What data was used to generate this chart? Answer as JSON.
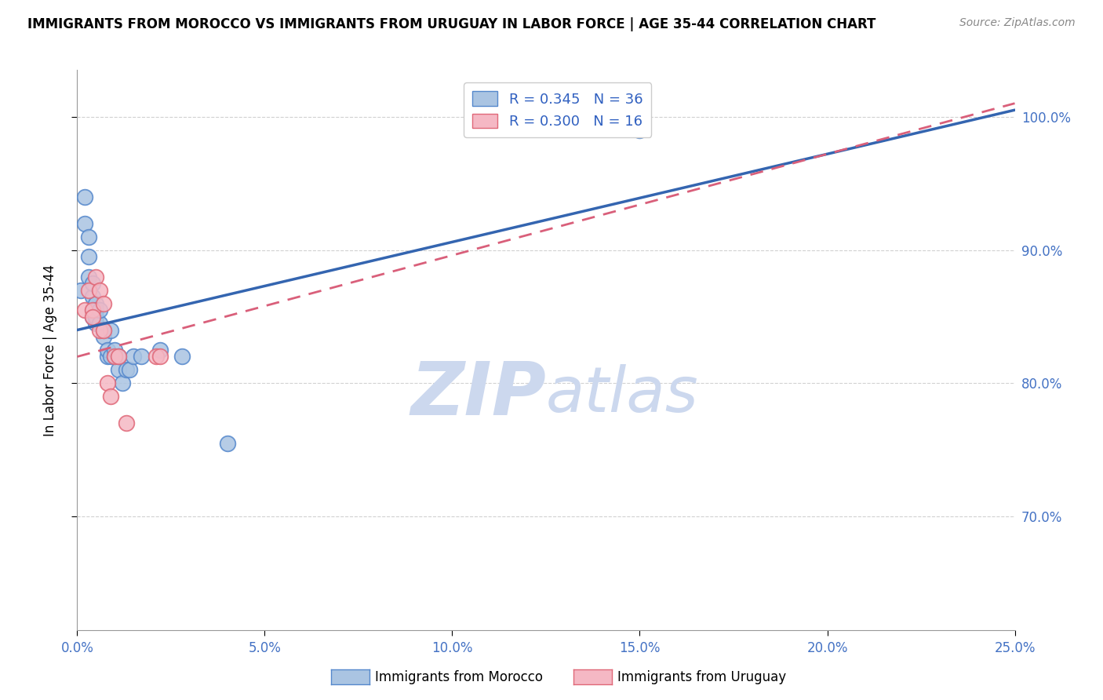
{
  "title": "IMMIGRANTS FROM MOROCCO VS IMMIGRANTS FROM URUGUAY IN LABOR FORCE | AGE 35-44 CORRELATION CHART",
  "source": "Source: ZipAtlas.com",
  "ylabel_label": "In Labor Force | Age 35-44",
  "xlim": [
    0.0,
    0.25
  ],
  "ylim": [
    0.615,
    1.035
  ],
  "xtick_labels": [
    "0.0%",
    "5.0%",
    "10.0%",
    "15.0%",
    "20.0%",
    "25.0%"
  ],
  "xtick_values": [
    0.0,
    0.05,
    0.1,
    0.15,
    0.2,
    0.25
  ],
  "ytick_labels": [
    "70.0%",
    "80.0%",
    "90.0%",
    "100.0%"
  ],
  "ytick_values": [
    0.7,
    0.8,
    0.9,
    1.0
  ],
  "morocco_color": "#aac4e2",
  "morocco_edge_color": "#5588cc",
  "uruguay_color": "#f5b8c4",
  "uruguay_edge_color": "#e06878",
  "morocco_R": 0.345,
  "morocco_N": 36,
  "uruguay_R": 0.3,
  "uruguay_N": 16,
  "morocco_line_color": "#3465b0",
  "uruguay_line_color": "#d95f7a",
  "watermark_zip": "ZIP",
  "watermark_atlas": "atlas",
  "watermark_color": "#ccd8ee",
  "legend_label_morocco": "Immigrants from Morocco",
  "legend_label_uruguay": "Immigrants from Uruguay",
  "morocco_x": [
    0.001,
    0.002,
    0.002,
    0.003,
    0.003,
    0.003,
    0.004,
    0.004,
    0.004,
    0.004,
    0.005,
    0.005,
    0.005,
    0.005,
    0.006,
    0.006,
    0.007,
    0.007,
    0.007,
    0.008,
    0.008,
    0.009,
    0.009,
    0.01,
    0.01,
    0.011,
    0.011,
    0.012,
    0.013,
    0.014,
    0.015,
    0.017,
    0.022,
    0.028,
    0.04,
    0.15
  ],
  "morocco_y": [
    0.87,
    0.92,
    0.94,
    0.88,
    0.895,
    0.91,
    0.855,
    0.865,
    0.875,
    0.85,
    0.845,
    0.86,
    0.855,
    0.85,
    0.845,
    0.855,
    0.84,
    0.84,
    0.835,
    0.82,
    0.825,
    0.84,
    0.82,
    0.82,
    0.825,
    0.81,
    0.82,
    0.8,
    0.81,
    0.81,
    0.82,
    0.82,
    0.825,
    0.82,
    0.755,
    0.99
  ],
  "uruguay_x": [
    0.002,
    0.003,
    0.004,
    0.004,
    0.005,
    0.006,
    0.006,
    0.007,
    0.007,
    0.008,
    0.009,
    0.01,
    0.011,
    0.013,
    0.021,
    0.022
  ],
  "uruguay_y": [
    0.855,
    0.87,
    0.855,
    0.85,
    0.88,
    0.87,
    0.84,
    0.86,
    0.84,
    0.8,
    0.79,
    0.82,
    0.82,
    0.77,
    0.82,
    0.82
  ],
  "morocco_line_x0": 0.0,
  "morocco_line_y0": 0.84,
  "morocco_line_x1": 0.25,
  "morocco_line_y1": 1.005,
  "uruguay_line_x0": 0.0,
  "uruguay_line_y0": 0.82,
  "uruguay_line_x1": 0.25,
  "uruguay_line_y1": 1.01
}
